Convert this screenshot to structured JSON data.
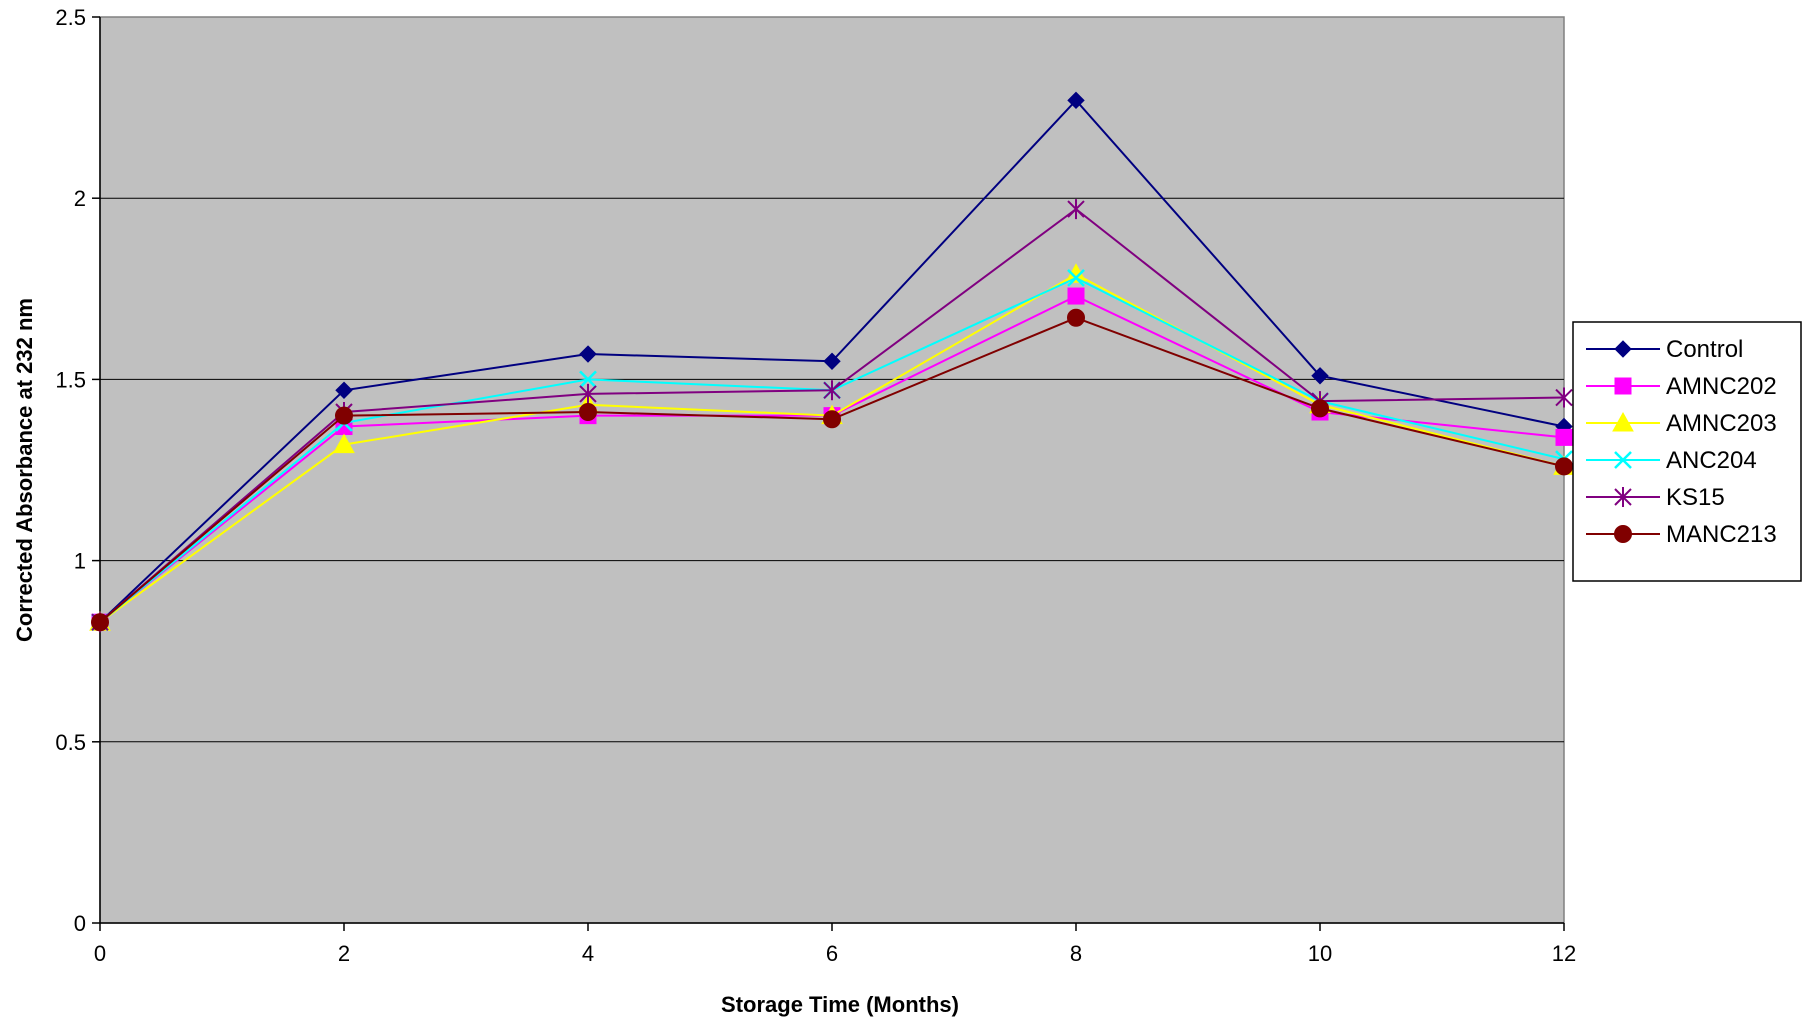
{
  "chart_data": {
    "type": "line",
    "title": "",
    "xlabel": "Storage Time (Months)",
    "ylabel": "Corrected Absorbance at 232 nm",
    "x": [
      0,
      2,
      4,
      6,
      8,
      10,
      12
    ],
    "xlim": [
      0,
      12
    ],
    "ylim": [
      0,
      2.5
    ],
    "x_ticks": [
      "0",
      "2",
      "4",
      "6",
      "8",
      "10",
      "12"
    ],
    "y_ticks": [
      "0",
      "0.5",
      "1",
      "1.5",
      "2",
      "2.5"
    ],
    "grid": "horizontal",
    "legend_position": "right",
    "plot_background": "#C0C0C0",
    "series": [
      {
        "name": "Control",
        "color": "#000080",
        "marker": "diamond",
        "values": [
          0.83,
          1.47,
          1.57,
          1.55,
          2.27,
          1.51,
          1.37
        ]
      },
      {
        "name": "AMNC202",
        "color": "#FF00FF",
        "marker": "square",
        "values": [
          0.83,
          1.37,
          1.4,
          1.4,
          1.73,
          1.41,
          1.34
        ]
      },
      {
        "name": "AMNC203",
        "color": "#FFFF00",
        "marker": "triangle",
        "values": [
          0.83,
          1.32,
          1.43,
          1.4,
          1.79,
          1.43,
          1.26
        ]
      },
      {
        "name": "ANC204",
        "color": "#00FFFF",
        "marker": "x",
        "values": [
          0.83,
          1.38,
          1.5,
          1.47,
          1.78,
          1.44,
          1.28
        ]
      },
      {
        "name": "KS15",
        "color": "#800080",
        "marker": "star",
        "values": [
          0.83,
          1.41,
          1.46,
          1.47,
          1.97,
          1.44,
          1.45
        ]
      },
      {
        "name": "MANC213",
        "color": "#800000",
        "marker": "circle",
        "values": [
          0.83,
          1.4,
          1.41,
          1.39,
          1.67,
          1.42,
          1.26
        ]
      }
    ]
  }
}
